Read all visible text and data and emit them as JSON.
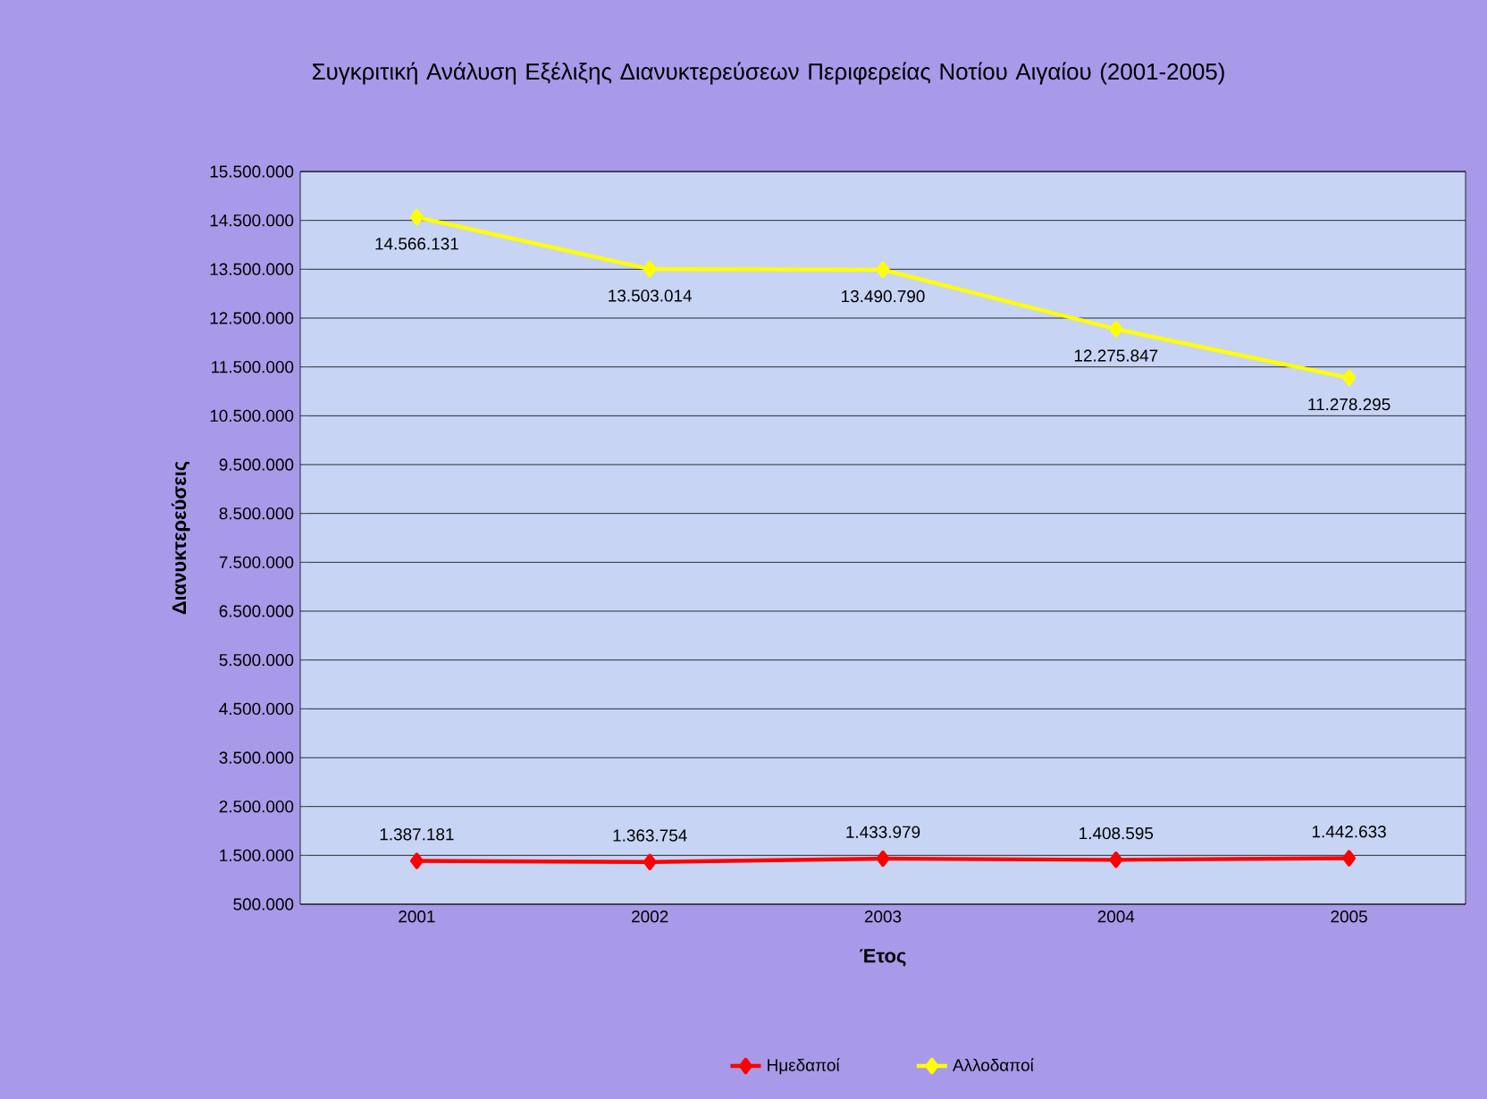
{
  "chart_data": {
    "type": "line",
    "title": "Συγκριτική Ανάλυση Εξέλιξης Διανυκτερεύσεων Περιφερείας Νοτίου Αιγαίου (2001-2005)",
    "xlabel": "Έτος",
    "ylabel": "Διανυκτερεύσεις",
    "categories": [
      "2001",
      "2002",
      "2003",
      "2004",
      "2005"
    ],
    "series": [
      {
        "name": "Ημεδαποί",
        "color": "#ff0000",
        "values": [
          1387181,
          1363754,
          1433979,
          1408595,
          1442633
        ],
        "value_labels": [
          "1.387.181",
          "1.363.754",
          "1.433.979",
          "1.408.595",
          "1.442.633"
        ]
      },
      {
        "name": "Αλλοδαποί",
        "color": "#ffff00",
        "values": [
          14566131,
          13503014,
          13490790,
          12275847,
          11278295
        ],
        "value_labels": [
          "14.566.131",
          "13.503.014",
          "13.490.790",
          "12.275.847",
          "11.278.295"
        ]
      }
    ],
    "ylim": [
      500000,
      15500000
    ],
    "yticks": [
      {
        "value": 500000,
        "label": "500.000"
      },
      {
        "value": 1500000,
        "label": "1.500.000"
      },
      {
        "value": 2500000,
        "label": "2.500.000"
      },
      {
        "value": 3500000,
        "label": "3.500.000"
      },
      {
        "value": 4500000,
        "label": "4.500.000"
      },
      {
        "value": 5500000,
        "label": "5.500.000"
      },
      {
        "value": 6500000,
        "label": "6.500.000"
      },
      {
        "value": 7500000,
        "label": "7.500.000"
      },
      {
        "value": 8500000,
        "label": "8.500.000"
      },
      {
        "value": 9500000,
        "label": "9.500.000"
      },
      {
        "value": 10500000,
        "label": "10.500.000"
      },
      {
        "value": 11500000,
        "label": "11.500.000"
      },
      {
        "value": 12500000,
        "label": "12.500.000"
      },
      {
        "value": 13500000,
        "label": "13.500.000"
      },
      {
        "value": 14500000,
        "label": "14.500.000"
      },
      {
        "value": 15500000,
        "label": "15.500.000"
      }
    ],
    "grid": "y",
    "legend": "bottom",
    "marker": "diamond",
    "line_style": "solid"
  }
}
